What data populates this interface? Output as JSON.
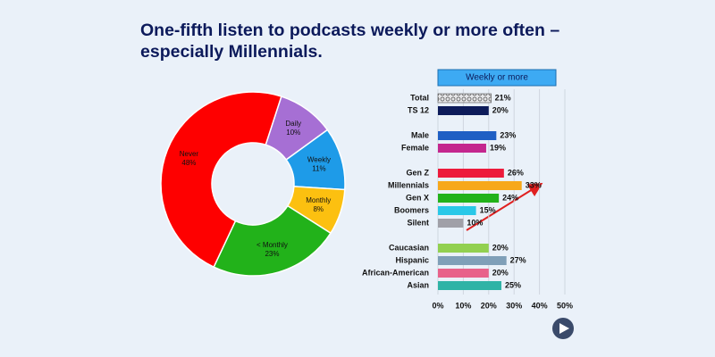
{
  "title": "One-fifth listen to podcasts weekly or more often – especially Millennials.",
  "chart_data": [
    {
      "type": "pie",
      "donut": true,
      "categories": [
        "Daily",
        "Weekly",
        "Monthly",
        "< Monthly",
        "Never"
      ],
      "values": [
        10,
        11,
        8,
        23,
        48
      ],
      "value_labels": [
        "10%",
        "11%",
        "8%",
        "23%",
        "48%"
      ],
      "colors": [
        "#a66fd4",
        "#1e9be8",
        "#fcc010",
        "#22b21a",
        "#fe0000"
      ]
    },
    {
      "type": "bar",
      "orientation": "horizontal",
      "header": "Weekly or more",
      "categories": [
        "Total",
        "TS 12",
        null,
        "Male",
        "Female",
        null,
        "Gen Z",
        "Millennials",
        "Gen X",
        "Boomers",
        "Silent",
        null,
        "Caucasian",
        "Hispanic",
        "African-American",
        "Asian"
      ],
      "values": [
        21,
        20,
        null,
        23,
        19,
        null,
        26,
        33,
        24,
        15,
        10,
        null,
        20,
        27,
        20,
        25
      ],
      "value_labels": [
        "21%",
        "20%",
        null,
        "23%",
        "19%",
        null,
        "26%",
        "33%",
        "24%",
        "15%",
        "10%",
        null,
        "20%",
        "27%",
        "20%",
        "25%"
      ],
      "colors": [
        "#c8c8cc",
        "#0d1b5a",
        null,
        "#1f5fc4",
        "#c4278e",
        null,
        "#ed1a3b",
        "#f7a81b",
        "#22b21a",
        "#29c8e8",
        "#a0a0a8",
        null,
        "#92d050",
        "#7f9fb8",
        "#e8628a",
        "#2fb3a6"
      ],
      "xlim": [
        0,
        50
      ],
      "xticks": [
        {
          "value": 0,
          "label": "0%"
        },
        {
          "value": 10,
          "label": "10%"
        },
        {
          "value": 20,
          "label": "20%"
        },
        {
          "value": 30,
          "label": "30%"
        },
        {
          "value": 40,
          "label": "40%"
        },
        {
          "value": 50,
          "label": "50%"
        }
      ],
      "grid": true
    }
  ]
}
